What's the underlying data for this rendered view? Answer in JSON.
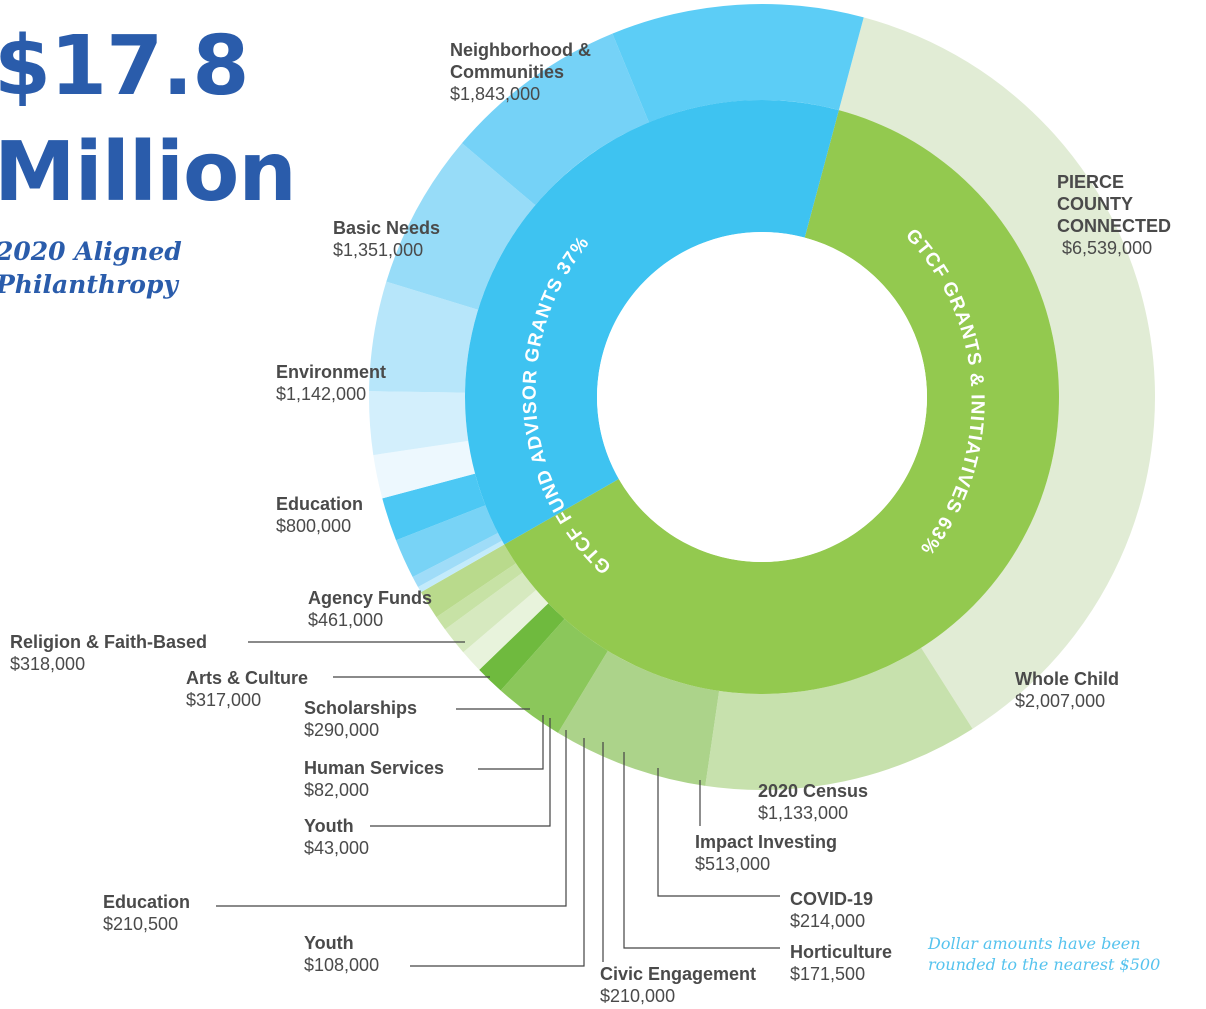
{
  "header": {
    "amount": "$17.8",
    "unit": "Million",
    "subtitle_line1": "2020 Aligned",
    "subtitle_line2": "Philanthropy"
  },
  "note": {
    "line1": "Dollar amounts have been",
    "line2": "rounded to the nearest $500"
  },
  "chart_data": {
    "type": "sunburst",
    "inner": [
      {
        "name": "GTCF FUND ADVISOR GRANTS",
        "percent": "37%",
        "color": "#3ec3f1"
      },
      {
        "name": "GTCF GRANTS & INITIATIVES",
        "percent": "63%",
        "color": "#93c94f"
      }
    ],
    "outer": [
      {
        "group": 0,
        "name": "Neighborhood & Communities",
        "amount": "$1,843,000",
        "value": 1843000,
        "color": "#5ccdf6"
      },
      {
        "group": 0,
        "name": "Basic Needs",
        "amount": "$1,351,000",
        "value": 1351000,
        "color": "#75d2f7"
      },
      {
        "group": 0,
        "name": "Environment",
        "amount": "$1,142,000",
        "value": 1142000,
        "color": "#97dcf8"
      },
      {
        "group": 0,
        "name": "Education",
        "amount": "$800,000",
        "value": 800000,
        "color": "#b7e6fa"
      },
      {
        "group": 0,
        "name": "Agency Funds",
        "amount": "$461,000",
        "value": 461000,
        "color": "#d3effc"
      },
      {
        "group": 0,
        "name": "Religion & Faith-Based",
        "amount": "$318,000",
        "value": 318000,
        "color": "#edf8fe"
      },
      {
        "group": 0,
        "name": "Arts & Culture",
        "amount": "$317,000",
        "value": 317000,
        "color": "#4cc8f4"
      },
      {
        "group": 0,
        "name": "Scholarships",
        "amount": "$290,000",
        "value": 290000,
        "color": "#78d3f6"
      },
      {
        "group": 0,
        "name": "Human Services",
        "amount": "$82,000",
        "value": 82000,
        "color": "#9fdcf8"
      },
      {
        "group": 0,
        "name": "Youth",
        "amount": "$43,000",
        "value": 43000,
        "color": "#c3ebfb"
      },
      {
        "group": 1,
        "name": "Education",
        "amount": "$210,500",
        "value": 210500,
        "color": "#b9da8c"
      },
      {
        "group": 1,
        "name": "Youth",
        "amount": "$108,000",
        "value": 108000,
        "color": "#c7e2a5"
      },
      {
        "group": 1,
        "name": "Civic Engagement",
        "amount": "$210,000",
        "value": 210000,
        "color": "#d6e9bf"
      },
      {
        "group": 1,
        "name": "Horticulture",
        "amount": "$171,500",
        "value": 171500,
        "color": "#e8f3dc"
      },
      {
        "group": 1,
        "name": "COVID-19",
        "amount": "$214,000",
        "value": 214000,
        "color": "#6fba3e"
      },
      {
        "group": 1,
        "name": "Impact Investing",
        "amount": "$513,000",
        "value": 513000,
        "color": "#8bc75b"
      },
      {
        "group": 1,
        "name": "2020 Census",
        "amount": "$1,133,000",
        "value": 1133000,
        "color": "#acd38a"
      },
      {
        "group": 1,
        "name": "Whole Child",
        "amount": "$2,007,000",
        "value": 2007000,
        "color": "#c7e1ad"
      },
      {
        "group": 1,
        "name": "PIERCE COUNTY CONNECTED",
        "amount": "$6,539,000",
        "value": 6539000,
        "color": "#e1ecd5"
      }
    ]
  }
}
